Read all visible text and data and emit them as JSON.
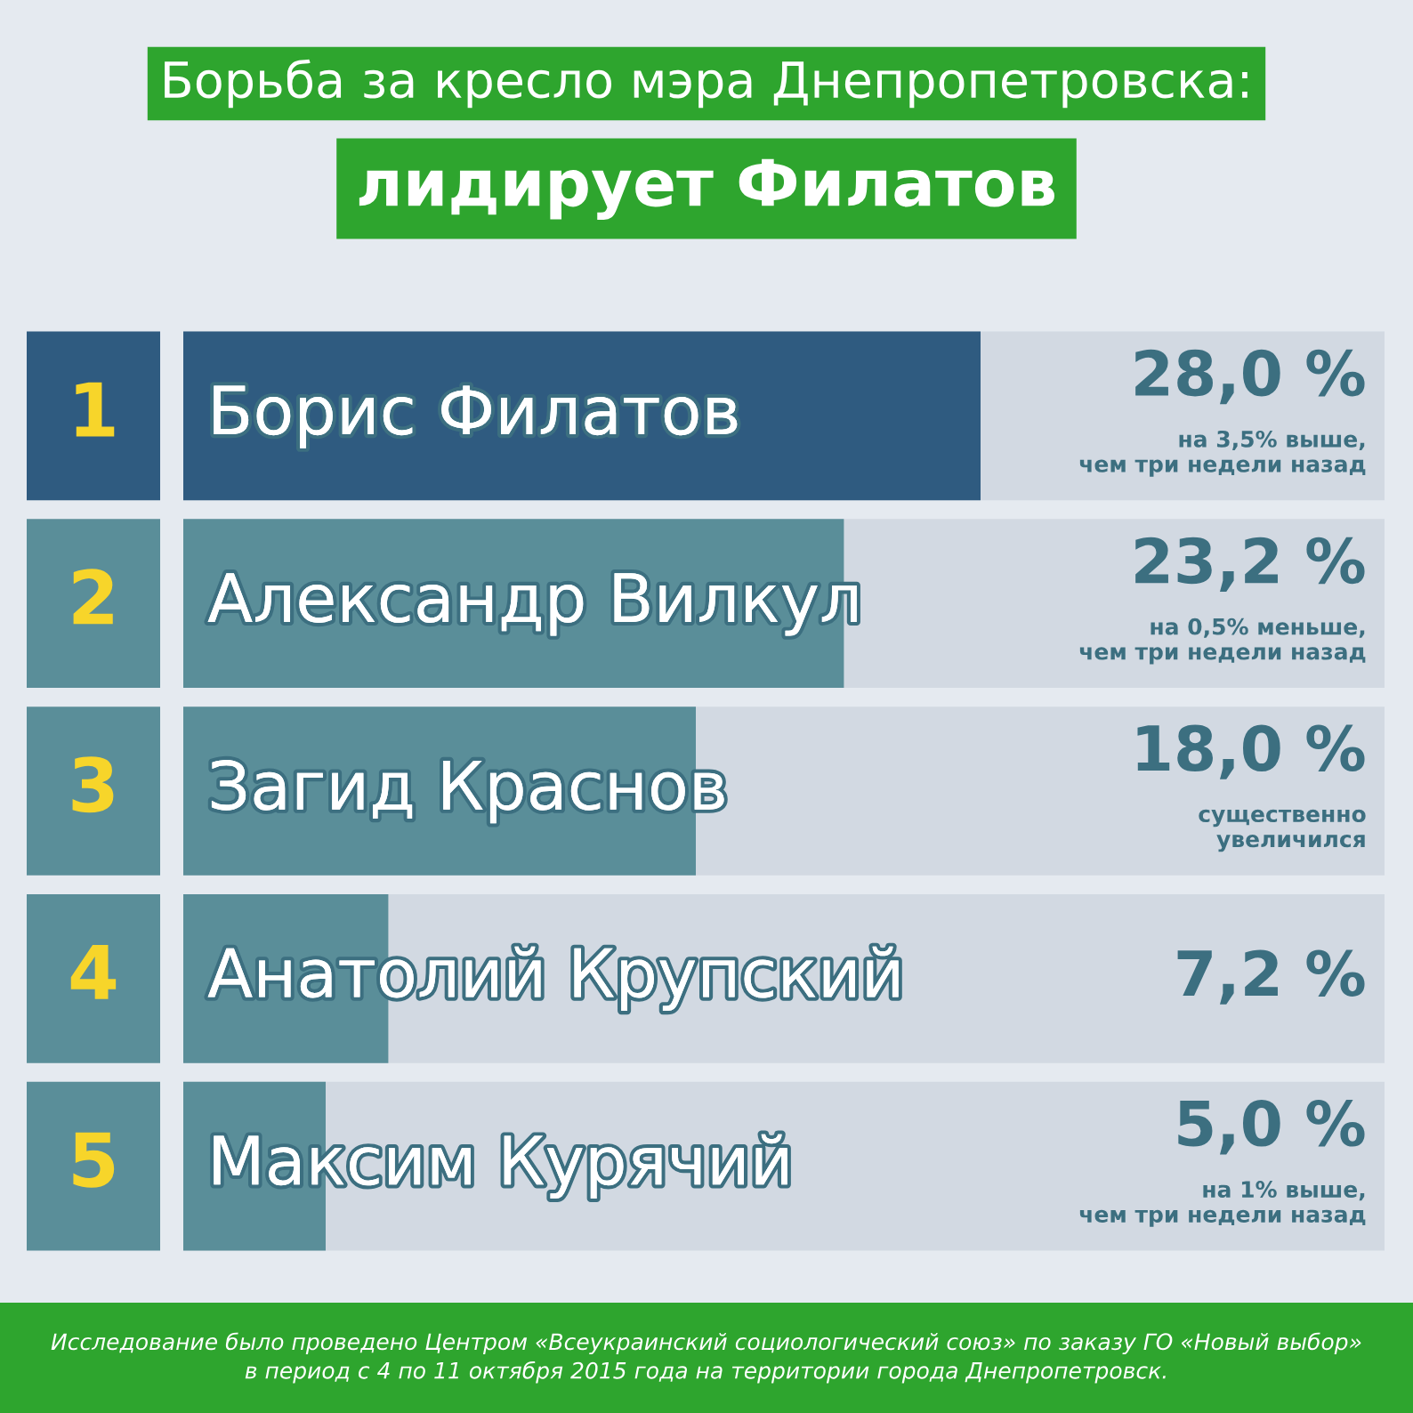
{
  "chart_data": {
    "type": "bar",
    "orientation": "horizontal",
    "title": "Борьба за кресло мэра Днепропетровска:",
    "subtitle": "лидирует Филатов",
    "categories": [
      "Борис Филатов",
      "Александр Вилкул",
      "Загид Краснов",
      "Анатолий Крупский",
      "Максим Курячий"
    ],
    "values": [
      28.0,
      23.2,
      18.0,
      7.2,
      5.0
    ],
    "value_labels": [
      "28,0 %\nна 3,5% выше,\nчем три недели назад",
      "23,2 %\nна 0,5% меньше,\nчем три недели назад",
      "18,0 %\nсущественно\nувеличился",
      "7,2 %",
      "5,0 %\nна 1% выше,\nчем три недели назад"
    ],
    "colors": [
      "#2f5b80",
      "#5a8e99",
      "#5a8e99",
      "#5a8e99",
      "#5a8e99"
    ],
    "annotations": [
      "1",
      "2",
      "3",
      "4",
      "5",
      "Исследование было проведено Центром «Всеукраинский социологический союз» по заказу ГО «Новый выбор»\nв период с 4 по 11 октября 2015 года на территории города Днепропетровск."
    ]
  }
}
